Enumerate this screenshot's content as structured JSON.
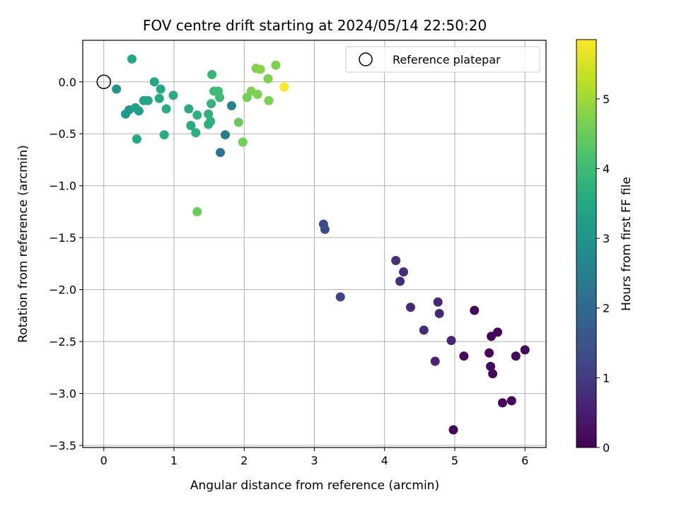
{
  "chart_data": {
    "type": "scatter",
    "title": "FOV centre drift starting at 2024/05/14 22:50:20",
    "xlabel": "Angular distance from reference (arcmin)",
    "ylabel": "Rotation from reference (arcmin)",
    "xlim": [
      -0.3,
      6.3
    ],
    "ylim": [
      -3.52,
      0.4
    ],
    "xticks": [
      "0",
      "1",
      "2",
      "3",
      "4",
      "5",
      "6"
    ],
    "yticks": [
      "0.0",
      "−0.5",
      "−1.0",
      "−1.5",
      "−2.0",
      "−2.5",
      "−3.0",
      "−3.5"
    ],
    "grid": true,
    "colormap": "viridis",
    "colorbar": {
      "label": "Hours from first FF file",
      "range": [
        0,
        5.85
      ],
      "ticks": [
        "0",
        "1",
        "2",
        "3",
        "4",
        "5"
      ]
    },
    "legend": {
      "position": "top-right",
      "label": "Reference platepar"
    },
    "reference_point": {
      "x": 0,
      "y": 0
    },
    "points": [
      {
        "x": 4.98,
        "y": -3.35,
        "h": 0.05
      },
      {
        "x": 5.13,
        "y": -2.64,
        "h": 0.1
      },
      {
        "x": 5.28,
        "y": -2.2,
        "h": 0.1
      },
      {
        "x": 5.49,
        "y": -2.61,
        "h": 0.1
      },
      {
        "x": 5.51,
        "y": -2.74,
        "h": 0.1
      },
      {
        "x": 5.52,
        "y": -2.45,
        "h": 0.1
      },
      {
        "x": 5.54,
        "y": -2.81,
        "h": 0.1
      },
      {
        "x": 5.61,
        "y": -2.41,
        "h": 0.1
      },
      {
        "x": 5.68,
        "y": -3.09,
        "h": 0.1
      },
      {
        "x": 5.81,
        "y": -3.07,
        "h": 0.1
      },
      {
        "x": 5.87,
        "y": -2.64,
        "h": 0.1
      },
      {
        "x": 6.0,
        "y": -2.58,
        "h": 0.1
      },
      {
        "x": 4.72,
        "y": -2.69,
        "h": 0.6
      },
      {
        "x": 4.95,
        "y": -2.49,
        "h": 0.6
      },
      {
        "x": 4.56,
        "y": -2.39,
        "h": 0.7
      },
      {
        "x": 4.78,
        "y": -2.23,
        "h": 0.65
      },
      {
        "x": 4.76,
        "y": -2.12,
        "h": 0.65
      },
      {
        "x": 4.37,
        "y": -2.17,
        "h": 0.7
      },
      {
        "x": 4.22,
        "y": -1.92,
        "h": 0.75
      },
      {
        "x": 4.27,
        "y": -1.83,
        "h": 0.75
      },
      {
        "x": 4.16,
        "y": -1.72,
        "h": 0.8
      },
      {
        "x": 3.37,
        "y": -2.07,
        "h": 1.2
      },
      {
        "x": 3.13,
        "y": -1.37,
        "h": 1.3
      },
      {
        "x": 3.15,
        "y": -1.42,
        "h": 1.3
      },
      {
        "x": 1.66,
        "y": -0.68,
        "h": 2.3
      },
      {
        "x": 1.73,
        "y": -0.51,
        "h": 2.4
      },
      {
        "x": 1.82,
        "y": -0.23,
        "h": 2.6
      },
      {
        "x": 0.18,
        "y": -0.07,
        "h": 3.0
      },
      {
        "x": 0.31,
        "y": -0.31,
        "h": 3.1
      },
      {
        "x": 0.36,
        "y": -0.27,
        "h": 3.1
      },
      {
        "x": 0.4,
        "y": 0.22,
        "h": 3.5
      },
      {
        "x": 0.45,
        "y": -0.25,
        "h": 3.3
      },
      {
        "x": 0.5,
        "y": -0.28,
        "h": 3.3
      },
      {
        "x": 0.47,
        "y": -0.55,
        "h": 3.5
      },
      {
        "x": 0.57,
        "y": -0.18,
        "h": 3.4
      },
      {
        "x": 0.63,
        "y": -0.18,
        "h": 3.4
      },
      {
        "x": 0.72,
        "y": 0.0,
        "h": 3.5
      },
      {
        "x": 0.79,
        "y": -0.16,
        "h": 3.5
      },
      {
        "x": 0.81,
        "y": -0.07,
        "h": 3.5
      },
      {
        "x": 0.86,
        "y": -0.51,
        "h": 3.6
      },
      {
        "x": 0.89,
        "y": -0.26,
        "h": 3.6
      },
      {
        "x": 0.99,
        "y": -0.13,
        "h": 3.6
      },
      {
        "x": 1.21,
        "y": -0.26,
        "h": 3.6
      },
      {
        "x": 1.24,
        "y": -0.42,
        "h": 3.6
      },
      {
        "x": 1.31,
        "y": -0.49,
        "h": 3.7
      },
      {
        "x": 1.33,
        "y": -0.32,
        "h": 3.7
      },
      {
        "x": 1.49,
        "y": -0.31,
        "h": 3.7
      },
      {
        "x": 1.49,
        "y": -0.41,
        "h": 3.7
      },
      {
        "x": 1.52,
        "y": -0.38,
        "h": 3.7
      },
      {
        "x": 1.53,
        "y": -0.21,
        "h": 3.8
      },
      {
        "x": 1.54,
        "y": 0.07,
        "h": 3.9
      },
      {
        "x": 1.57,
        "y": -0.09,
        "h": 3.9
      },
      {
        "x": 1.63,
        "y": -0.09,
        "h": 4.0
      },
      {
        "x": 1.65,
        "y": -0.15,
        "h": 4.0
      },
      {
        "x": 1.33,
        "y": -1.25,
        "h": 4.5
      },
      {
        "x": 1.92,
        "y": -0.39,
        "h": 4.5
      },
      {
        "x": 1.98,
        "y": -0.58,
        "h": 4.6
      },
      {
        "x": 2.04,
        "y": -0.15,
        "h": 4.6
      },
      {
        "x": 2.1,
        "y": -0.09,
        "h": 4.7
      },
      {
        "x": 2.17,
        "y": 0.13,
        "h": 4.7
      },
      {
        "x": 2.19,
        "y": -0.12,
        "h": 4.7
      },
      {
        "x": 2.23,
        "y": 0.12,
        "h": 4.8
      },
      {
        "x": 2.34,
        "y": 0.03,
        "h": 4.7
      },
      {
        "x": 2.35,
        "y": -0.18,
        "h": 4.7
      },
      {
        "x": 2.45,
        "y": 0.16,
        "h": 4.7
      },
      {
        "x": 2.57,
        "y": -0.05,
        "h": 5.85
      }
    ]
  }
}
